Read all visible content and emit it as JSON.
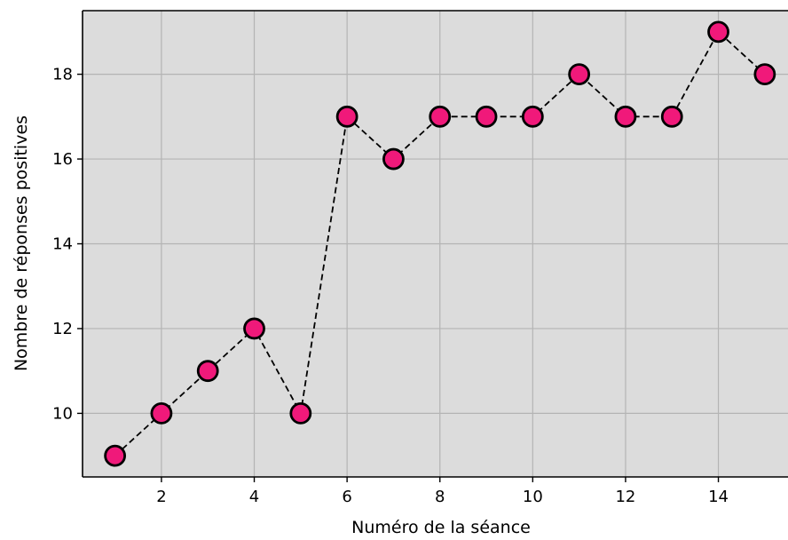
{
  "chart_data": {
    "type": "line",
    "title": "",
    "xlabel": "Numéro de la séance",
    "ylabel": "Nombre de réponses positives",
    "x": [
      1,
      2,
      3,
      4,
      5,
      6,
      7,
      8,
      9,
      10,
      11,
      12,
      13,
      14,
      15
    ],
    "series": [
      {
        "values": [
          9,
          10,
          11,
          12,
          10,
          17,
          16,
          17,
          17,
          17,
          18,
          17,
          17,
          19,
          18
        ]
      }
    ],
    "xticks": [
      2,
      4,
      6,
      8,
      10,
      12,
      14
    ],
    "yticks": [
      10,
      12,
      14,
      16,
      18
    ],
    "xlim": [
      0.3,
      15.5
    ],
    "ylim": [
      8.5,
      19.5
    ],
    "grid": true,
    "line_style": "dashed",
    "marker": "circle",
    "colors": {
      "marker_fill": "#f0197a",
      "marker_edge": "#000000",
      "line": "#000000",
      "plot_background": "#dcdcdc",
      "grid": "#b4b4b4"
    }
  }
}
